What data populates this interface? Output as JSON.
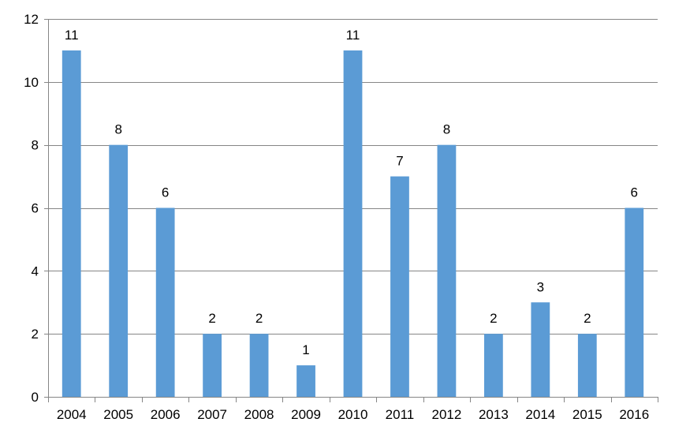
{
  "chart_data": {
    "type": "bar",
    "title": "",
    "xlabel": "",
    "ylabel": "",
    "categories": [
      "2004",
      "2005",
      "2006",
      "2007",
      "2008",
      "2009",
      "2010",
      "2011",
      "2012",
      "2013",
      "2014",
      "2015",
      "2016"
    ],
    "values": [
      11,
      8,
      6,
      2,
      2,
      1,
      11,
      7,
      8,
      2,
      3,
      2,
      6
    ],
    "ylim": [
      0,
      12
    ],
    "yticks": [
      0,
      2,
      4,
      6,
      8,
      10,
      12
    ],
    "grid": true,
    "legend": "none",
    "data_labels": true,
    "colors": {
      "bar": "#5B9BD5",
      "grid": "#868686",
      "axis": "#868686"
    }
  }
}
